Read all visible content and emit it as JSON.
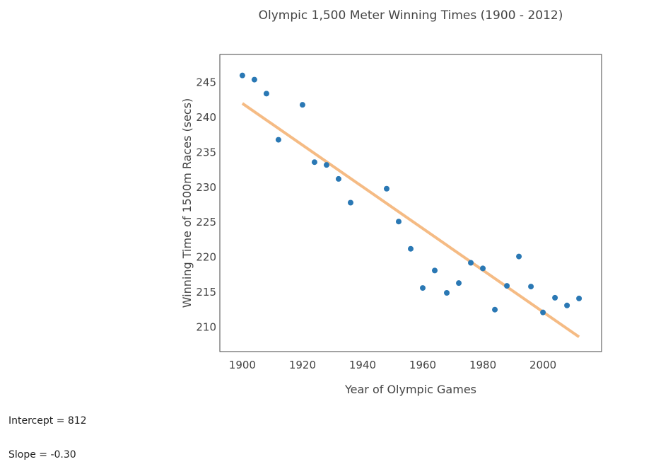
{
  "chart_data": {
    "type": "scatter",
    "title": "Olympic 1,500 Meter Winning Times (1900 - 2012)",
    "xlabel": "Year of Olympic Games",
    "ylabel": "Winning Time of 1500m Races (secs)",
    "xlim": [
      1892.5,
      2019.5
    ],
    "ylim": [
      206.5,
      249.0
    ],
    "xticks": [
      1900,
      1920,
      1940,
      1960,
      1980,
      2000
    ],
    "yticks": [
      210,
      215,
      220,
      225,
      230,
      235,
      240,
      245
    ],
    "grid": false,
    "series": [
      {
        "kind": "points",
        "color": "#2a78b4",
        "x": [
          1900,
          1904,
          1908,
          1912,
          1920,
          1924,
          1928,
          1932,
          1936,
          1948,
          1952,
          1956,
          1960,
          1964,
          1968,
          1972,
          1976,
          1980,
          1984,
          1988,
          1992,
          1996,
          2000,
          2004,
          2008,
          2012
        ],
        "y": [
          246.0,
          245.4,
          243.4,
          236.8,
          241.8,
          233.6,
          233.2,
          231.2,
          227.8,
          229.8,
          225.1,
          221.2,
          215.6,
          218.1,
          214.9,
          216.3,
          219.2,
          218.4,
          212.5,
          215.9,
          220.1,
          215.8,
          212.1,
          214.2,
          213.1,
          214.1
        ]
      },
      {
        "kind": "trend-line",
        "color": "#f5bb84",
        "x": [
          1900,
          2012
        ],
        "y": [
          242.0,
          208.6
        ]
      }
    ]
  },
  "stats": {
    "intercept": "Intercept = 812",
    "slope": "Slope = -0.30"
  }
}
